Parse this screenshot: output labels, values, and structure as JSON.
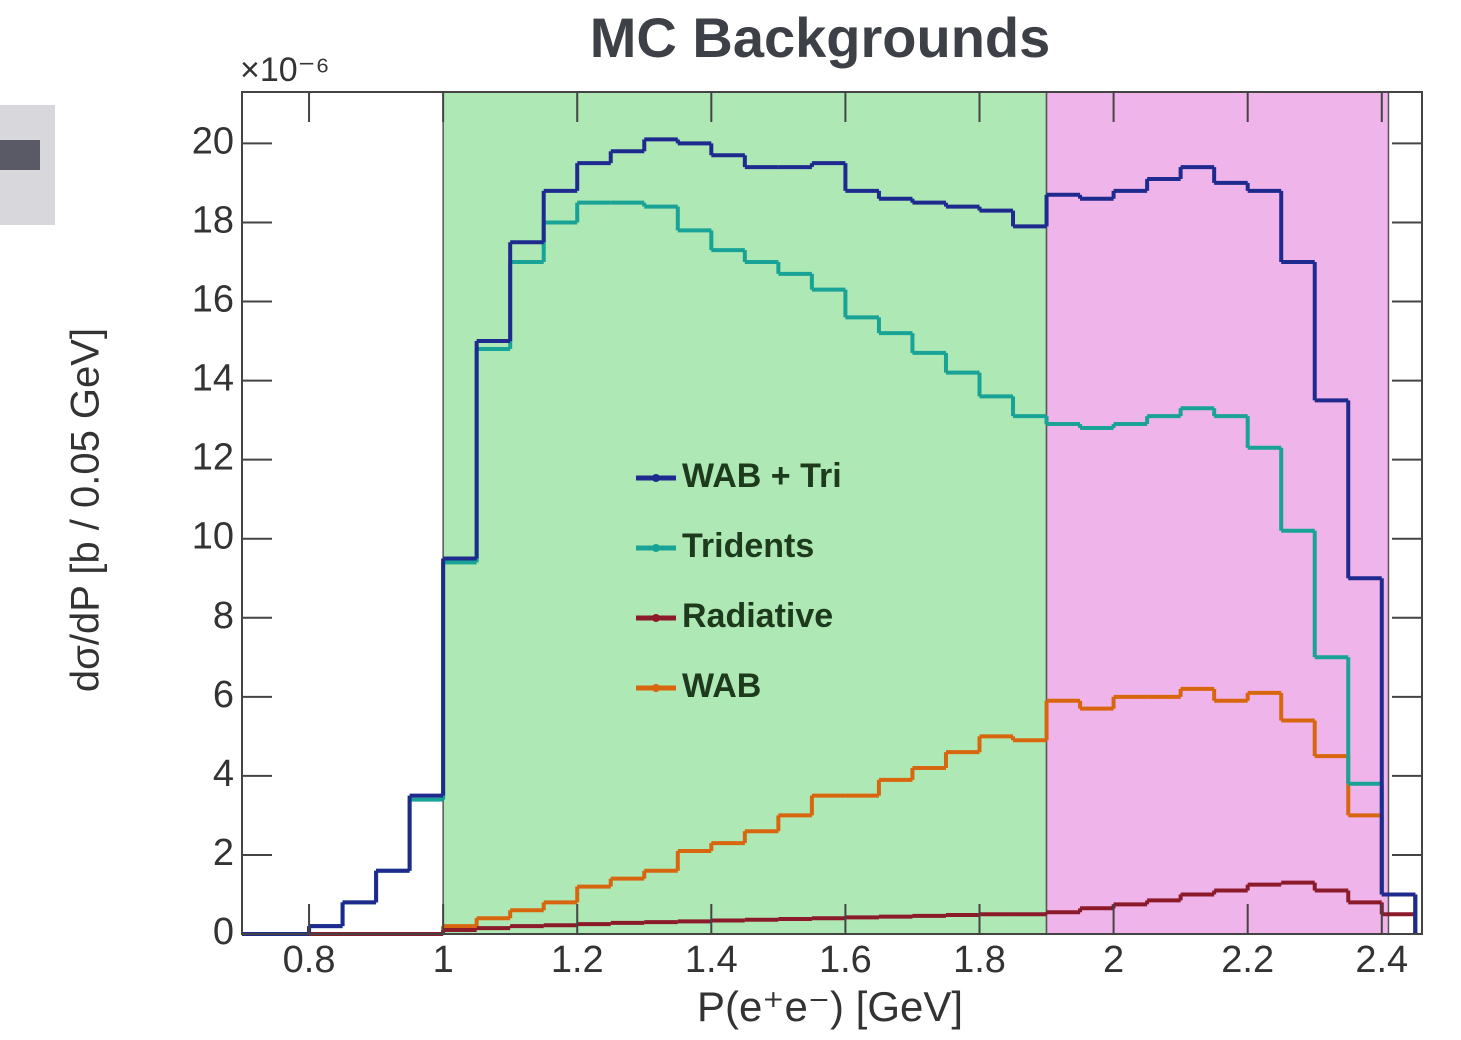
{
  "chart_data": {
    "type": "step-histogram",
    "title": "MC Backgrounds",
    "x_label": "P(e⁺e⁻) [GeV]",
    "y_label": "dσ/dP [b / 0.05 GeV]",
    "y_multiplier": "×10⁻⁶",
    "bins": [
      0.7,
      0.75,
      0.8,
      0.85,
      0.9,
      0.95,
      1.0,
      1.05,
      1.1,
      1.15,
      1.2,
      1.25,
      1.3,
      1.35,
      1.4,
      1.45,
      1.5,
      1.55,
      1.6,
      1.65,
      1.7,
      1.75,
      1.8,
      1.85,
      1.9,
      1.95,
      2.0,
      2.05,
      2.1,
      2.15,
      2.2,
      2.25,
      2.3,
      2.35,
      2.4,
      2.45
    ],
    "xlim": [
      0.7,
      2.46
    ],
    "ylim": [
      0,
      21.3
    ],
    "xticks": [
      0.8,
      1,
      1.2,
      1.4,
      1.6,
      1.8,
      2,
      2.2,
      2.4
    ],
    "yticks": [
      0,
      2,
      4,
      6,
      8,
      10,
      12,
      14,
      16,
      18,
      20
    ],
    "regions": [
      {
        "xlim": [
          1.0,
          1.9
        ],
        "color": "#aee8b4"
      },
      {
        "xlim": [
          1.9,
          2.41
        ],
        "color": "#efb4ea"
      }
    ],
    "series": [
      {
        "name": "WAB + Tri",
        "color": "#1f2a8f",
        "values": [
          0,
          0,
          0.2,
          0.8,
          1.6,
          3.5,
          9.5,
          15,
          17.5,
          18.8,
          19.5,
          19.8,
          20.1,
          20,
          19.7,
          19.4,
          19.4,
          19.5,
          18.8,
          18.6,
          18.5,
          18.4,
          18.3,
          17.9,
          18.7,
          18.6,
          18.8,
          19.1,
          19.4,
          19.0,
          18.8,
          17.0,
          13.5,
          9.0,
          1.0
        ]
      },
      {
        "name": "Tridents",
        "color": "#19a396",
        "values": [
          0,
          0,
          0.2,
          0.8,
          1.6,
          3.4,
          9.4,
          14.8,
          17,
          18,
          18.5,
          18.5,
          18.4,
          17.8,
          17.3,
          17,
          16.7,
          16.3,
          15.6,
          15.2,
          14.7,
          14.2,
          13.6,
          13.1,
          12.9,
          12.8,
          12.9,
          13.1,
          13.3,
          13.1,
          12.3,
          10.2,
          7.0,
          3.8,
          1.0
        ]
      },
      {
        "name": "Radiative",
        "color": "#8b1a2a",
        "values": [
          0,
          0,
          0,
          0,
          0,
          0,
          0.1,
          0.15,
          0.2,
          0.22,
          0.25,
          0.28,
          0.3,
          0.32,
          0.34,
          0.36,
          0.38,
          0.4,
          0.42,
          0.44,
          0.46,
          0.48,
          0.5,
          0.5,
          0.55,
          0.65,
          0.75,
          0.85,
          1.0,
          1.1,
          1.25,
          1.3,
          1.1,
          0.8,
          0.5
        ]
      },
      {
        "name": "WAB",
        "color": "#d8660f",
        "values": [
          0,
          0,
          0,
          0,
          0,
          0,
          0.2,
          0.4,
          0.6,
          0.8,
          1.2,
          1.4,
          1.6,
          2.1,
          2.3,
          2.6,
          3.0,
          3.5,
          3.5,
          3.9,
          4.2,
          4.6,
          5.0,
          4.9,
          5.9,
          5.7,
          6.0,
          6.0,
          6.2,
          5.9,
          6.1,
          5.4,
          4.5,
          3.0,
          1.0
        ]
      }
    ]
  }
}
